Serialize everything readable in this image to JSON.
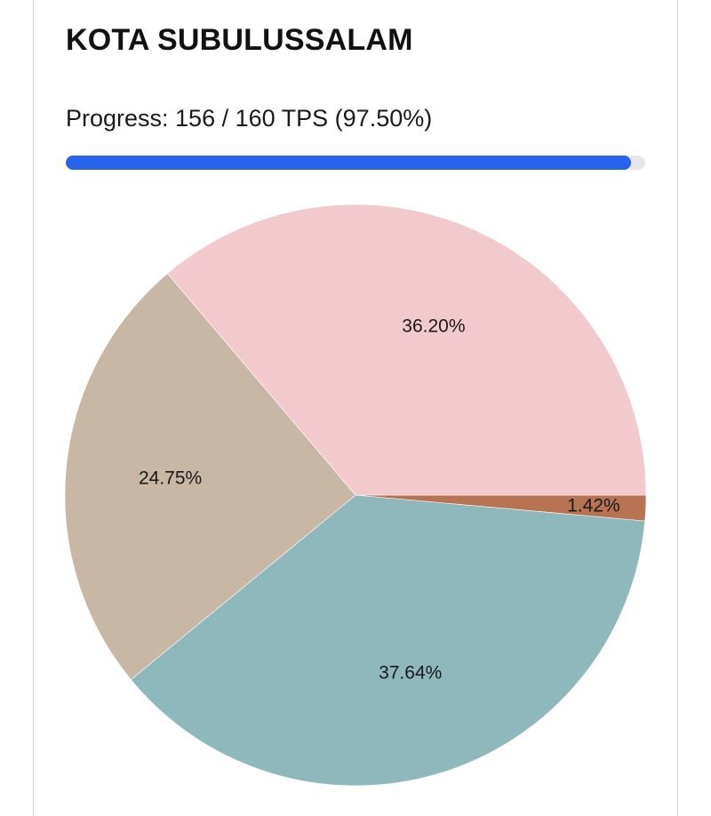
{
  "header": {
    "title": "KOTA SUBULUSSALAM"
  },
  "progress": {
    "label": "Progress: 156 / 160 TPS (97.50%)",
    "done": 156,
    "total": 160,
    "percent": 97.5,
    "fill_color": "#2563eb",
    "track_color": "#e5e7eb"
  },
  "chart_data": {
    "type": "pie",
    "slices": [
      {
        "value": 1.42,
        "label": "1.42%",
        "color": "#b87353"
      },
      {
        "value": 37.64,
        "label": "37.64%",
        "color": "#8fb8bc"
      },
      {
        "value": 24.75,
        "label": "24.75%",
        "color": "#c8b7a4"
      },
      {
        "value": 36.2,
        "label": "36.20%",
        "color": "#f2c9cc"
      }
    ],
    "start": "3 o'clock",
    "direction": "clockwise"
  }
}
